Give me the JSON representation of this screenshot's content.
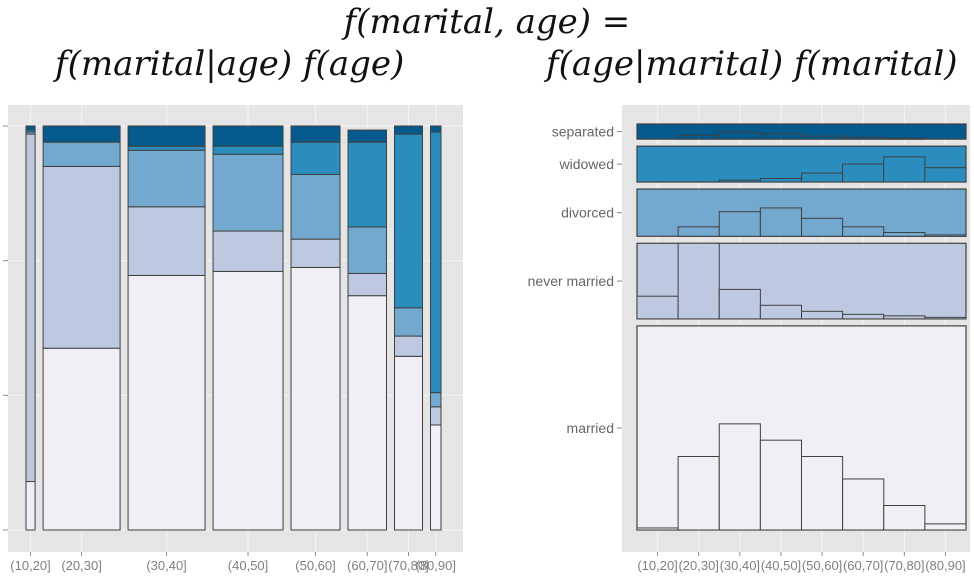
{
  "equations": {
    "top": "f(marital, age) =",
    "left": "f(marital|age) f(age)",
    "right": "f(age|marital) f(marital)"
  },
  "colors": {
    "married": "#f1eef6",
    "never married": "#bdc9e1",
    "divorced": "#74a9cf",
    "widowed": "#2b8cbe",
    "separated": "#045a8d",
    "panel_bg": "#e5e5e5",
    "stroke": "#404040"
  },
  "chart_data": [
    {
      "type": "bar",
      "subtype": "mosaic",
      "categories": [
        "(10,20]",
        "(20,30]",
        "(30,40]",
        "(40,50]",
        "(50,60]",
        "(60,70]",
        "(70,80]",
        "(80,90]"
      ],
      "category_share": [
        0.013,
        0.11,
        0.11,
        0.1,
        0.07,
        0.055,
        0.04,
        0.015
      ],
      "stack_order": [
        "married",
        "never married",
        "divorced",
        "widowed",
        "separated"
      ],
      "series": [
        {
          "name": "married",
          "values": [
            0.12,
            0.45,
            0.63,
            0.64,
            0.65,
            0.58,
            0.43,
            0.26
          ]
        },
        {
          "name": "never married",
          "values": [
            0.86,
            0.45,
            0.17,
            0.1,
            0.07,
            0.055,
            0.05,
            0.045
          ]
        },
        {
          "name": "divorced",
          "values": [
            0.005,
            0.06,
            0.14,
            0.19,
            0.16,
            0.115,
            0.07,
            0.035
          ]
        },
        {
          "name": "widowed",
          "values": [
            0.005,
            0.0,
            0.01,
            0.02,
            0.08,
            0.21,
            0.43,
            0.645
          ]
        },
        {
          "name": "separated",
          "values": [
            0.01,
            0.04,
            0.05,
            0.05,
            0.04,
            0.03,
            0.02,
            0.015
          ]
        }
      ],
      "ylim": [
        0,
        1
      ],
      "grid": true
    },
    {
      "type": "bar",
      "subtype": "small-multiple-histogram",
      "categories": [
        "(10,20]",
        "(20,30]",
        "(30,40]",
        "(40,50]",
        "(50,60]",
        "(60,70]",
        "(70,80]",
        "(80,90]"
      ],
      "rows": [
        "separated",
        "widowed",
        "divorced",
        "never married",
        "married"
      ],
      "row_share": [
        0.04,
        0.095,
        0.125,
        0.2,
        0.54
      ],
      "series": [
        {
          "name": "married",
          "values": [
            0.01,
            0.36,
            0.52,
            0.44,
            0.36,
            0.25,
            0.12,
            0.03
          ]
        },
        {
          "name": "never married",
          "values": [
            0.3,
            1.0,
            0.39,
            0.18,
            0.1,
            0.06,
            0.04,
            0.02
          ]
        },
        {
          "name": "divorced",
          "values": [
            0.0,
            0.2,
            0.52,
            0.6,
            0.38,
            0.2,
            0.08,
            0.03
          ]
        },
        {
          "name": "widowed",
          "values": [
            0.0,
            0.0,
            0.05,
            0.1,
            0.25,
            0.5,
            0.7,
            0.4
          ]
        },
        {
          "name": "separated",
          "values": [
            0.0,
            0.25,
            0.45,
            0.35,
            0.2,
            0.12,
            0.05,
            0.0
          ]
        }
      ],
      "grid": true
    }
  ]
}
